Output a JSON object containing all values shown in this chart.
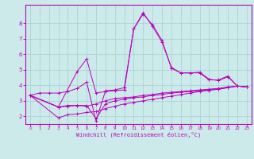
{
  "xlabel": "Windchill (Refroidissement éolien,°C)",
  "bg_color": "#cceaea",
  "grid_color": "#aad4d4",
  "line_color": "#bb00bb",
  "xlim": [
    -0.5,
    23.5
  ],
  "ylim": [
    1.5,
    9.2
  ],
  "xticks": [
    0,
    1,
    2,
    3,
    4,
    5,
    6,
    7,
    8,
    9,
    10,
    11,
    12,
    13,
    14,
    15,
    16,
    17,
    18,
    19,
    20,
    21,
    22,
    23
  ],
  "yticks": [
    2,
    3,
    4,
    5,
    6,
    7,
    8
  ],
  "curves": [
    {
      "x": [
        0,
        1,
        2,
        3,
        4,
        5,
        6,
        7,
        8,
        9,
        10,
        11,
        12,
        13,
        14,
        15,
        16,
        17,
        18,
        19,
        20,
        21,
        22,
        23
      ],
      "y": [
        3.35,
        3.5,
        3.5,
        3.5,
        3.6,
        3.8,
        4.2,
        1.7,
        3.65,
        3.7,
        3.85,
        7.65,
        8.7,
        7.8,
        6.8,
        5.15,
        4.8,
        4.8,
        4.8,
        4.35,
        4.35,
        4.6,
        3.95,
        3.9
      ]
    },
    {
      "x": [
        0,
        3,
        4,
        5,
        6,
        7,
        8,
        9,
        10,
        11,
        12,
        13,
        14,
        15,
        16,
        17,
        18,
        19,
        20,
        21,
        22,
        23
      ],
      "y": [
        3.35,
        2.6,
        2.7,
        2.7,
        2.65,
        2.8,
        3.0,
        3.15,
        3.2,
        3.25,
        3.35,
        3.4,
        3.5,
        3.55,
        3.6,
        3.65,
        3.7,
        3.75,
        3.8,
        3.9,
        3.95,
        3.9
      ]
    },
    {
      "x": [
        0,
        3,
        4,
        5,
        6,
        7,
        8,
        9,
        10,
        11,
        12,
        13,
        14,
        15,
        16,
        17,
        18,
        19,
        20,
        21,
        22,
        23
      ],
      "y": [
        3.35,
        2.6,
        2.65,
        2.7,
        2.7,
        1.85,
        2.8,
        3.0,
        3.1,
        3.2,
        3.25,
        3.35,
        3.4,
        3.5,
        3.55,
        3.6,
        3.65,
        3.7,
        3.75,
        3.85,
        3.95,
        3.9
      ]
    },
    {
      "x": [
        0,
        3,
        4,
        5,
        6,
        7,
        8,
        9,
        10,
        11,
        12,
        13,
        14,
        15,
        16,
        17,
        18,
        19,
        20,
        21,
        22,
        23
      ],
      "y": [
        3.35,
        1.9,
        2.1,
        2.15,
        2.25,
        2.3,
        2.5,
        2.65,
        2.8,
        2.9,
        3.0,
        3.1,
        3.2,
        3.3,
        3.4,
        3.5,
        3.6,
        3.68,
        3.75,
        3.85,
        3.95,
        3.9
      ]
    },
    {
      "x": [
        0,
        3,
        5,
        6,
        7,
        8,
        9,
        10,
        11,
        12,
        13,
        14,
        15,
        16,
        17,
        18,
        19,
        20,
        21,
        22,
        23
      ],
      "y": [
        3.35,
        2.6,
        4.9,
        5.7,
        3.5,
        3.6,
        3.65,
        3.7,
        7.65,
        8.6,
        7.9,
        6.9,
        5.1,
        4.8,
        4.8,
        4.85,
        4.4,
        4.3,
        4.55,
        3.95,
        3.9
      ]
    }
  ]
}
